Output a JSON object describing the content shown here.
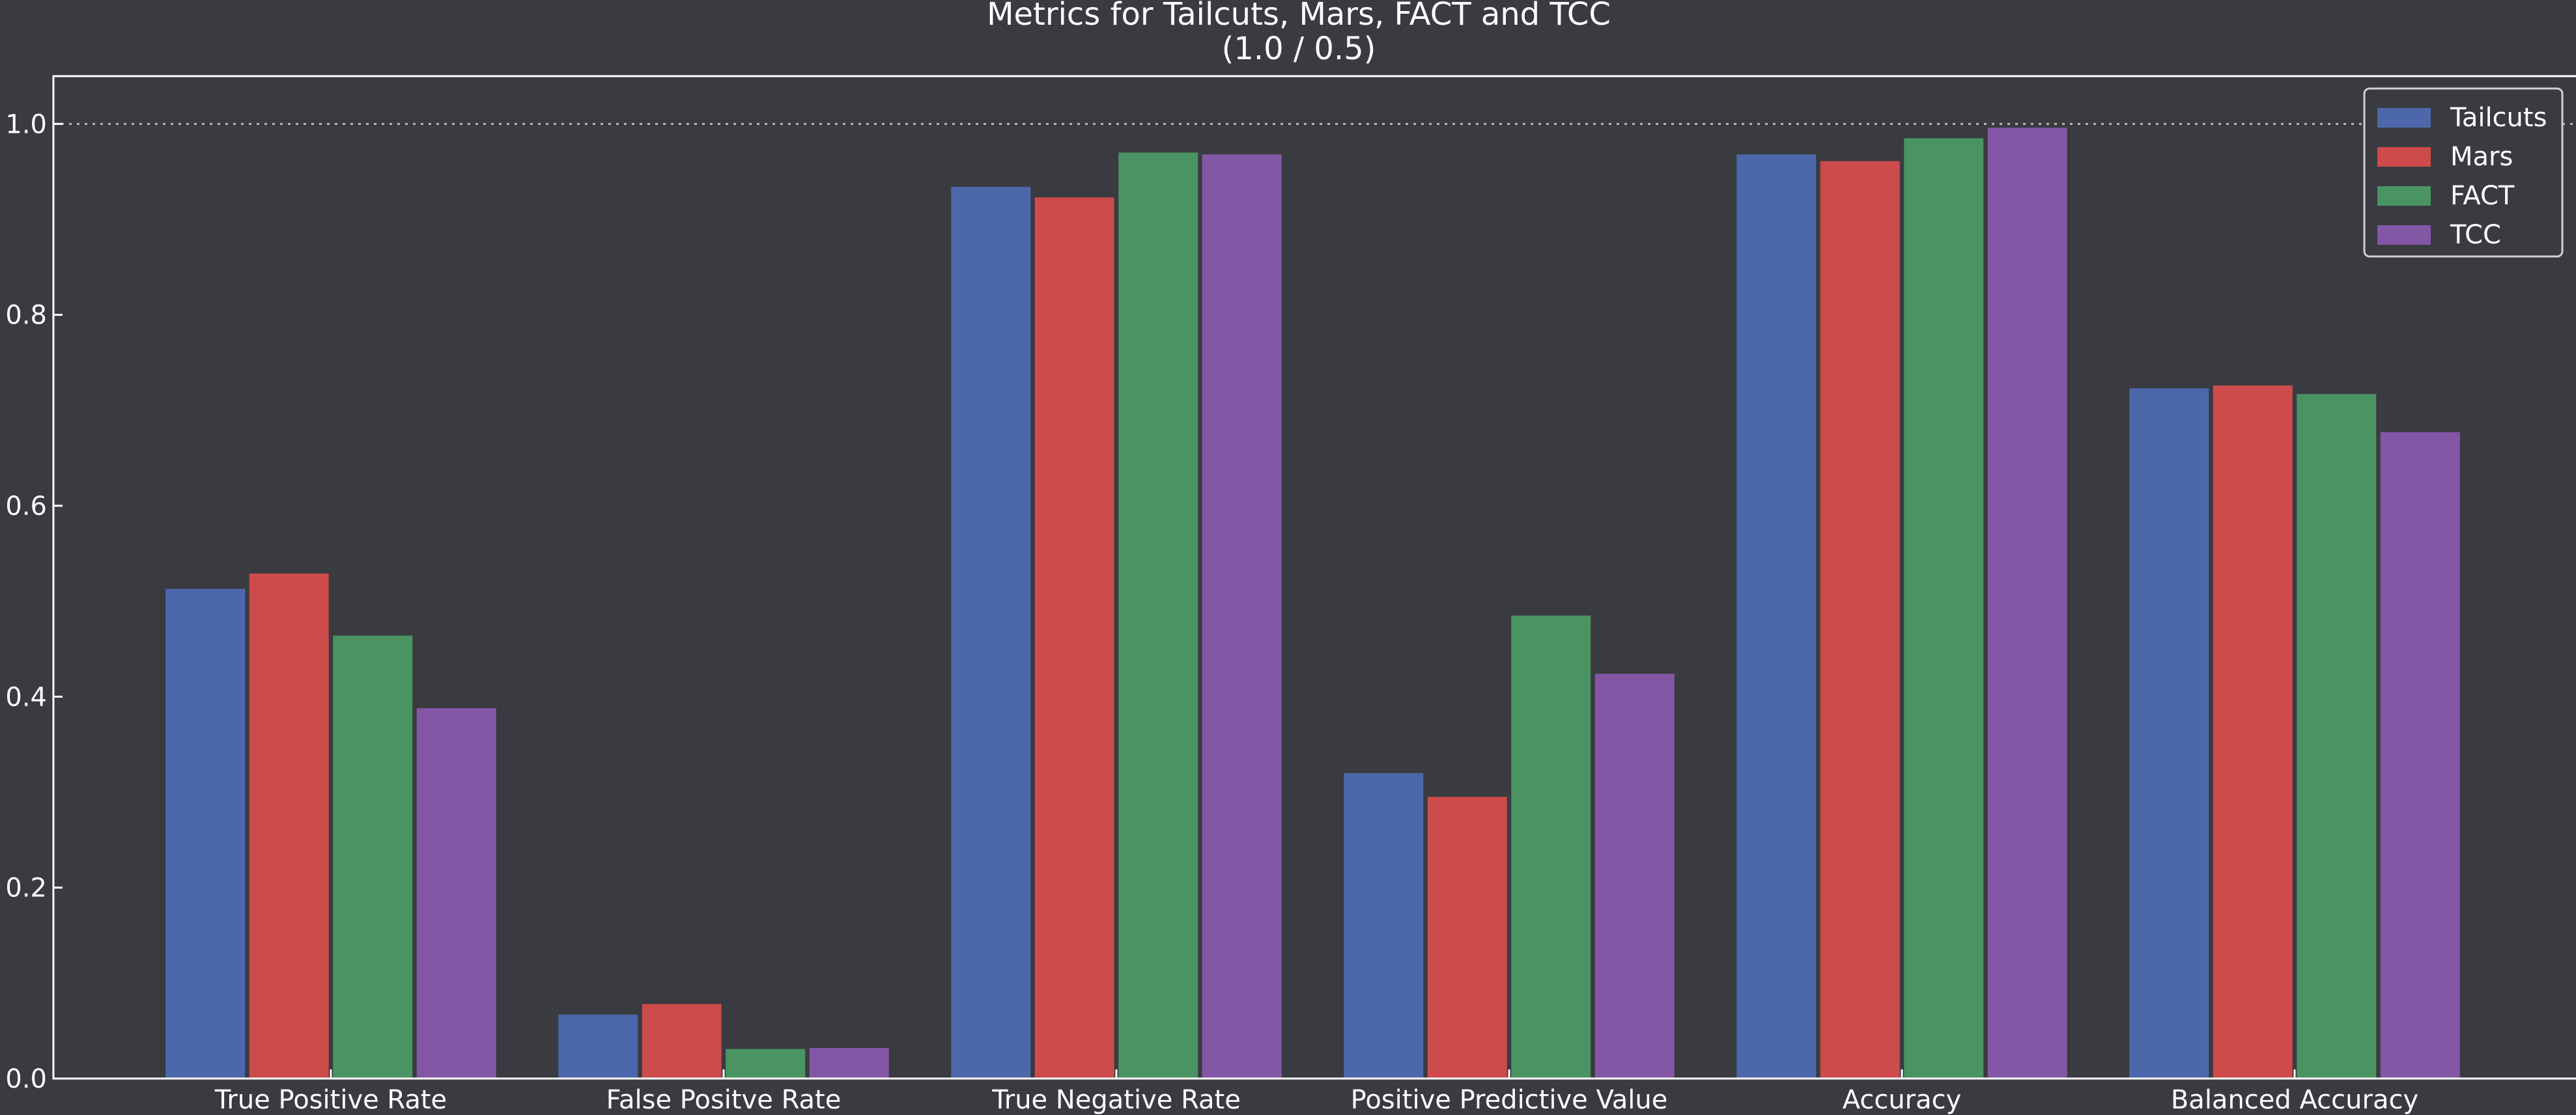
{
  "chart_data": {
    "type": "bar",
    "title": "Metrics for Tailcuts, Mars, FACT and TCC",
    "subtitle": "(1.0 / 0.5)",
    "xlabel": "",
    "ylabel": "",
    "ylim": [
      0,
      1.05
    ],
    "yticks": [
      0.0,
      0.2,
      0.4,
      0.6,
      0.8,
      1.0
    ],
    "ytick_labels": [
      "0.0",
      "0.2",
      "0.4",
      "0.6",
      "0.8",
      "1.0"
    ],
    "reference_line": 1.0,
    "grid": false,
    "legend_position": "top-right",
    "categories": [
      "True Positive Rate",
      "False Positve Rate",
      "True Negative Rate",
      "Positive Predictive Value",
      "Accuracy",
      "Balanced Accuracy"
    ],
    "series": [
      {
        "name": "Tailcuts",
        "color": "#4c68ab",
        "values": [
          0.513,
          0.067,
          0.934,
          0.32,
          0.968,
          0.723
        ]
      },
      {
        "name": "Mars",
        "color": "#cd4b4b",
        "values": [
          0.529,
          0.078,
          0.923,
          0.295,
          0.961,
          0.726
        ]
      },
      {
        "name": "FACT",
        "color": "#4a9362",
        "values": [
          0.464,
          0.031,
          0.97,
          0.485,
          0.985,
          0.717
        ]
      },
      {
        "name": "TCC",
        "color": "#8357a6",
        "values": [
          0.388,
          0.032,
          0.968,
          0.424,
          0.996,
          0.677
        ]
      }
    ]
  }
}
